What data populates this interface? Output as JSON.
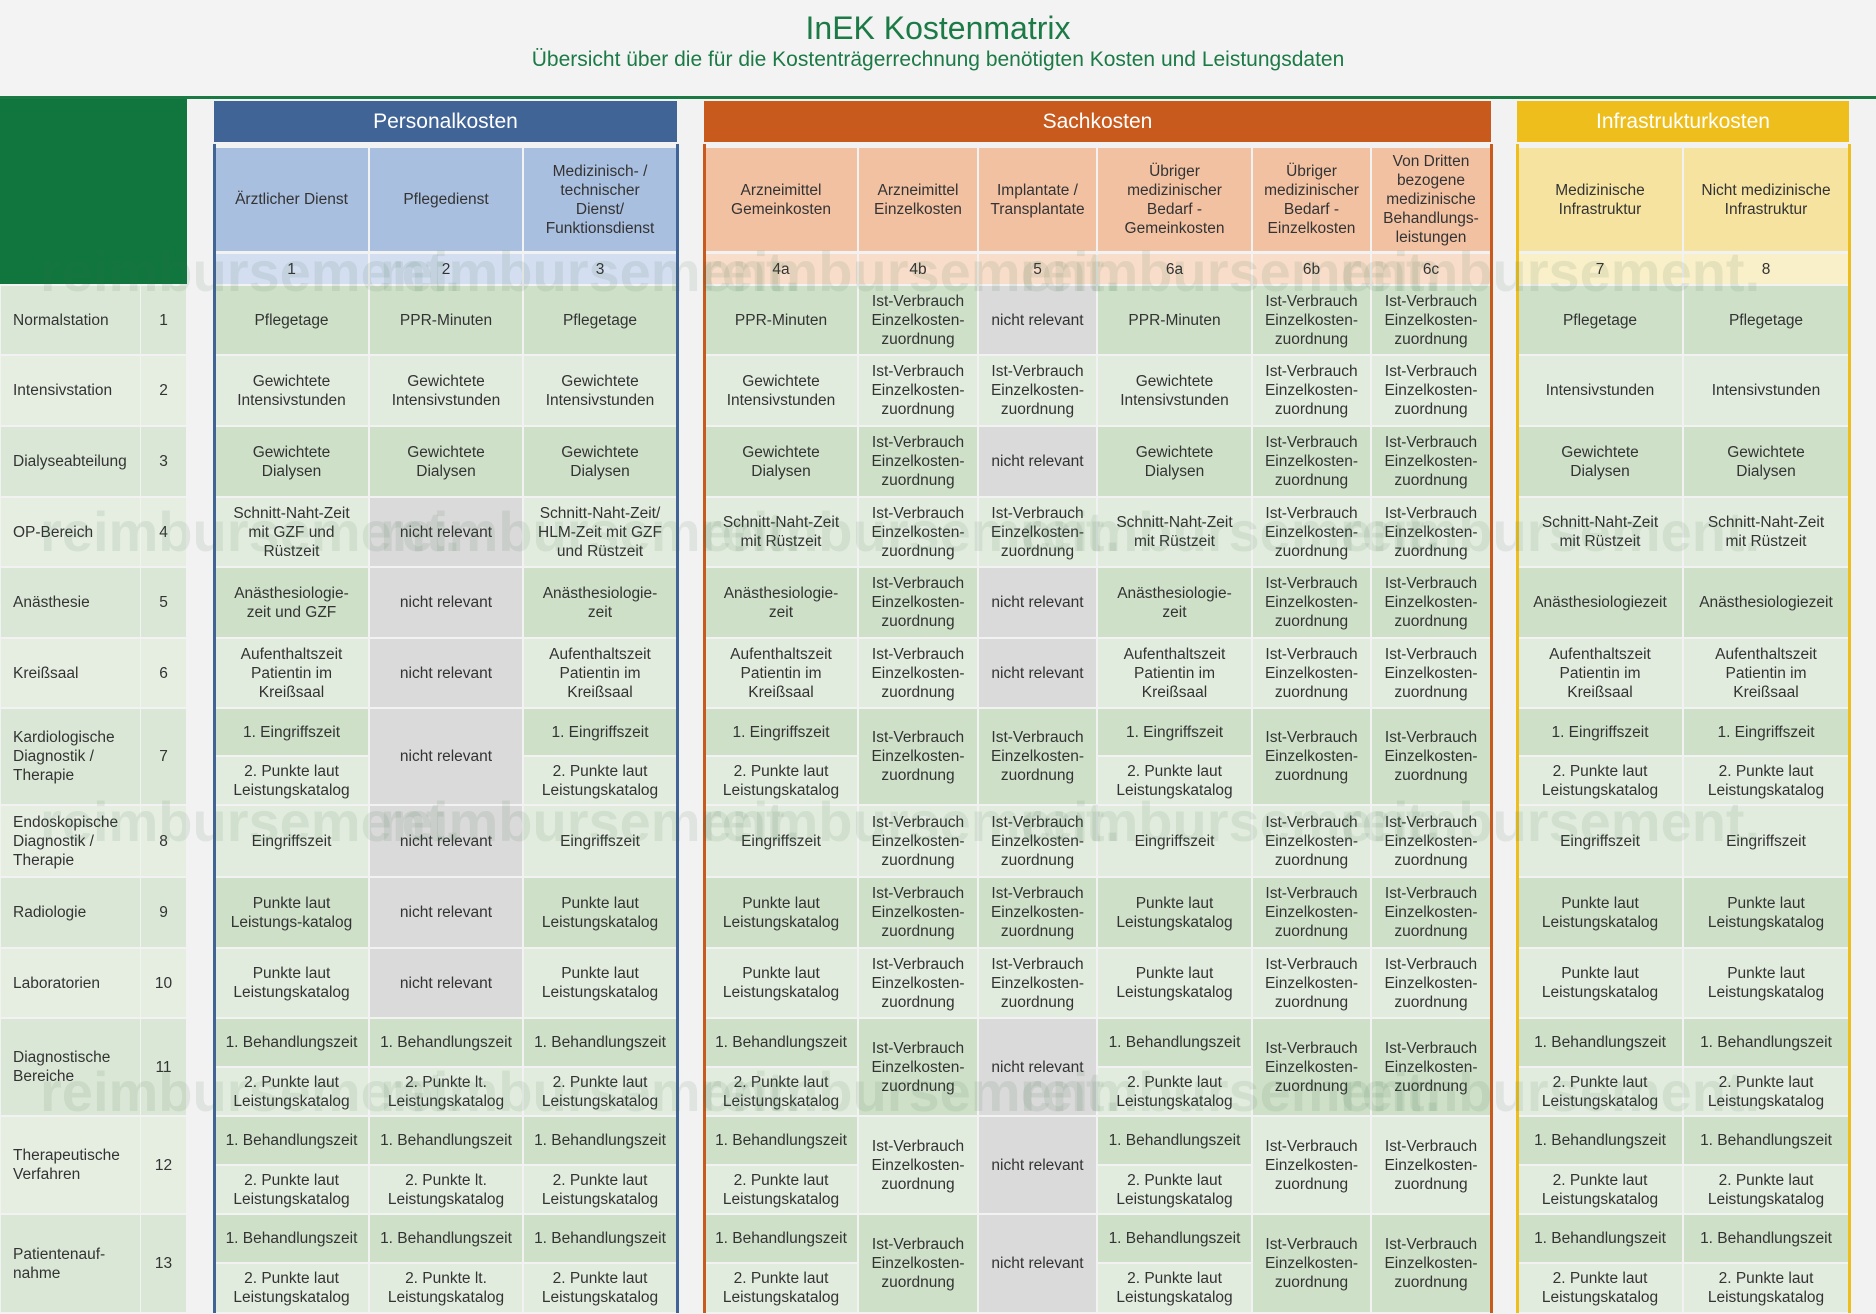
{
  "title": "InEK Kostenmatrix",
  "subtitle": "Übersicht über die für die Kostenträgerrechnung benötigten Kosten und Leistungsdaten",
  "watermark": "reimbursement.",
  "colors": {
    "personal": "#416496",
    "sach": "#c85a1e",
    "infra": "#eebe1c",
    "green": "#11763e"
  },
  "groups": [
    {
      "label": "Personalkosten",
      "key": "personal"
    },
    {
      "label": "Sachkosten",
      "key": "sach"
    },
    {
      "label": "Infrastrukturkosten",
      "key": "infra"
    }
  ],
  "columns": [
    {
      "label": "Ärztlicher Dienst",
      "num": "1",
      "group": "personal"
    },
    {
      "label": "Pflegedienst",
      "num": "2",
      "group": "personal"
    },
    {
      "label": "Medizinisch- /\ntechnischer\nDienst/\nFunktionsdienst",
      "num": "3",
      "group": "personal"
    },
    {
      "label": "Arzneimittel\nGemeinkosten",
      "num": "4a",
      "group": "sach"
    },
    {
      "label": "Arzneimittel\nEinzelkosten",
      "num": "4b",
      "group": "sach"
    },
    {
      "label": "Implantate /\nTransplantate",
      "num": "5",
      "group": "sach"
    },
    {
      "label": "Übriger\nmedizinischer\nBedarf -\nGemeinkosten",
      "num": "6a",
      "group": "sach"
    },
    {
      "label": "Übriger\nmedizinischer\nBedarf -\nEinzelkosten",
      "num": "6b",
      "group": "sach"
    },
    {
      "label": "Von Dritten\nbezogene\nmedizinische\nBehandlungs-\nleistungen",
      "num": "6c",
      "group": "sach"
    },
    {
      "label": "Medizinische\nInfrastruktur",
      "num": "7",
      "group": "infra"
    },
    {
      "label": "Nicht medizinische\nInfrastruktur",
      "num": "8",
      "group": "infra"
    }
  ],
  "rows": [
    {
      "label": "Normalstation",
      "num": "1",
      "cells": [
        "Pflegetage",
        "PPR-Minuten",
        "Pflegetage",
        "PPR-Minuten",
        "Ist-Verbrauch\nEinzelkosten-\nzuordnung",
        "nicht relevant",
        "PPR-Minuten",
        "Ist-Verbrauch\nEinzelkosten-\nzuordnung",
        "Ist-Verbrauch\nEinzelkosten-\nzuordnung",
        "Pflegetage",
        "Pflegetage"
      ]
    },
    {
      "label": "Intensivstation",
      "num": "2",
      "cells": [
        "Gewichtete\nIntensivstunden",
        "Gewichtete\nIntensivstunden",
        "Gewichtete\nIntensivstunden",
        "Gewichtete\nIntensivstunden",
        "Ist-Verbrauch\nEinzelkosten-\nzuordnung",
        "Ist-Verbrauch\nEinzelkosten-\nzuordnung",
        "Gewichtete\nIntensivstunden",
        "Ist-Verbrauch\nEinzelkosten-\nzuordnung",
        "Ist-Verbrauch\nEinzelkosten-\nzuordnung",
        "Intensivstunden",
        "Intensivstunden"
      ]
    },
    {
      "label": "Dialyseabteilung",
      "num": "3",
      "cells": [
        "Gewichtete\nDialysen",
        "Gewichtete\nDialysen",
        "Gewichtete\nDialysen",
        "Gewichtete\nDialysen",
        "Ist-Verbrauch\nEinzelkosten-\nzuordnung",
        "nicht relevant",
        "Gewichtete\nDialysen",
        "Ist-Verbrauch\nEinzelkosten-\nzuordnung",
        "Ist-Verbrauch\nEinzelkosten-\nzuordnung",
        "Gewichtete\nDialysen",
        "Gewichtete\nDialysen"
      ]
    },
    {
      "label": "OP-Bereich",
      "num": "4",
      "cells": [
        "Schnitt-Naht-Zeit\nmit GZF und\nRüstzeit",
        "nicht relevant",
        "Schnitt-Naht-Zeit/\nHLM-Zeit mit GZF\nund Rüstzeit",
        "Schnitt-Naht-Zeit\nmit Rüstzeit",
        "Ist-Verbrauch\nEinzelkosten-\nzuordnung",
        "Ist-Verbrauch\nEinzelkosten-\nzuordnung",
        "Schnitt-Naht-Zeit\nmit Rüstzeit",
        "Ist-Verbrauch\nEinzelkosten-\nzuordnung",
        "Ist-Verbrauch\nEinzelkosten-\nzuordnung",
        "Schnitt-Naht-Zeit\nmit Rüstzeit",
        "Schnitt-Naht-Zeit\nmit Rüstzeit"
      ]
    },
    {
      "label": "Anästhesie",
      "num": "5",
      "cells": [
        "Anästhesiologie-\nzeit und GZF",
        "nicht relevant",
        "Anästhesiologie-\nzeit",
        "Anästhesiologie-\nzeit",
        "Ist-Verbrauch\nEinzelkosten-\nzuordnung",
        "nicht relevant",
        "Anästhesiologie-\nzeit",
        "Ist-Verbrauch\nEinzelkosten-\nzuordnung",
        "Ist-Verbrauch\nEinzelkosten-\nzuordnung",
        "Anästhesiologiezeit",
        "Anästhesiologiezeit"
      ]
    },
    {
      "label": "Kreißsaal",
      "num": "6",
      "cells": [
        "Aufenthaltszeit\nPatientin im\nKreißsaal",
        "nicht relevant",
        "Aufenthaltszeit\nPatientin im\nKreißsaal",
        "Aufenthaltszeit\nPatientin im\nKreißsaal",
        "Ist-Verbrauch\nEinzelkosten-\nzuordnung",
        "nicht relevant",
        "Aufenthaltszeit\nPatientin im\nKreißsaal",
        "Ist-Verbrauch\nEinzelkosten-\nzuordnung",
        "Ist-Verbrauch\nEinzelkosten-\nzuordnung",
        "Aufenthaltszeit\nPatientin im\nKreißsaal",
        "Aufenthaltszeit\nPatientin im\nKreißsaal"
      ]
    },
    {
      "label": "Kardiologische\nDiagnostik /\nTherapie",
      "num": "7",
      "cells": [
        [
          "1. Eingriffszeit",
          "2. Punkte laut\nLeistungskatalog"
        ],
        "nicht relevant",
        [
          "1. Eingriffszeit",
          "2. Punkte laut\nLeistungskatalog"
        ],
        [
          "1. Eingriffszeit",
          "2. Punkte laut\nLeistungskatalog"
        ],
        "Ist-Verbrauch\nEinzelkosten-\nzuordnung",
        "Ist-Verbrauch\nEinzelkosten-\nzuordnung",
        [
          "1. Eingriffszeit",
          "2. Punkte laut\nLeistungskatalog"
        ],
        "Ist-Verbrauch\nEinzelkosten-\nzuordnung",
        "Ist-Verbrauch\nEinzelkosten-\nzuordnung",
        [
          "1. Eingriffszeit",
          "2. Punkte laut\nLeistungskatalog"
        ],
        [
          "1. Eingriffszeit",
          "2. Punkte laut\nLeistungskatalog"
        ]
      ]
    },
    {
      "label": "Endoskopische\nDiagnostik /\nTherapie",
      "num": "8",
      "cells": [
        "Eingriffszeit",
        "nicht relevant",
        "Eingriffszeit",
        "Eingriffszeit",
        "Ist-Verbrauch\nEinzelkosten-\nzuordnung",
        "Ist-Verbrauch\nEinzelkosten-\nzuordnung",
        "Eingriffszeit",
        "Ist-Verbrauch\nEinzelkosten-\nzuordnung",
        "Ist-Verbrauch\nEinzelkosten-\nzuordnung",
        "Eingriffszeit",
        "Eingriffszeit"
      ]
    },
    {
      "label": "Radiologie",
      "num": "9",
      "cells": [
        "Punkte laut\nLeistungs-katalog",
        "nicht relevant",
        "Punkte laut\nLeistungskatalog",
        "Punkte laut\nLeistungskatalog",
        "Ist-Verbrauch\nEinzelkosten-\nzuordnung",
        "Ist-Verbrauch\nEinzelkosten-\nzuordnung",
        "Punkte laut\nLeistungskatalog",
        "Ist-Verbrauch\nEinzelkosten-\nzuordnung",
        "Ist-Verbrauch\nEinzelkosten-\nzuordnung",
        "Punkte laut\nLeistungskatalog",
        "Punkte laut\nLeistungskatalog"
      ]
    },
    {
      "label": "Laboratorien",
      "num": "10",
      "cells": [
        "Punkte laut\nLeistungskatalog",
        "nicht relevant",
        "Punkte laut\nLeistungskatalog",
        "Punkte laut\nLeistungskatalog",
        "Ist-Verbrauch\nEinzelkosten-\nzuordnung",
        "Ist-Verbrauch\nEinzelkosten-\nzuordnung",
        "Punkte laut\nLeistungskatalog",
        "Ist-Verbrauch\nEinzelkosten-\nzuordnung",
        "Ist-Verbrauch\nEinzelkosten-\nzuordnung",
        "Punkte laut\nLeistungskatalog",
        "Punkte laut\nLeistungskatalog"
      ]
    },
    {
      "label": "Diagnostische\nBereiche",
      "num": "11",
      "cells": [
        [
          "1. Behandlungszeit",
          "2. Punkte laut\nLeistungskatalog"
        ],
        [
          "1. Behandlungszeit",
          "2. Punkte lt.\nLeistungskatalog"
        ],
        [
          "1. Behandlungszeit",
          "2. Punkte laut\nLeistungskatalog"
        ],
        [
          "1. Behandlungszeit",
          "2. Punkte laut\nLeistungskatalog"
        ],
        "Ist-Verbrauch\nEinzelkosten-\nzuordnung",
        "nicht relevant",
        [
          "1. Behandlungszeit",
          "2. Punkte laut\nLeistungskatalog"
        ],
        "Ist-Verbrauch\nEinzelkosten-\nzuordnung",
        "Ist-Verbrauch\nEinzelkosten-\nzuordnung",
        [
          "1. Behandlungszeit",
          "2. Punkte laut\nLeistungskatalog"
        ],
        [
          "1. Behandlungszeit",
          "2. Punkte laut\nLeistungskatalog"
        ]
      ]
    },
    {
      "label": "Therapeutische\nVerfahren",
      "num": "12",
      "cells": [
        [
          "1. Behandlungszeit",
          "2. Punkte laut\nLeistungskatalog"
        ],
        [
          "1. Behandlungszeit",
          "2. Punkte lt.\nLeistungskatalog"
        ],
        [
          "1. Behandlungszeit",
          "2. Punkte laut\nLeistungskatalog"
        ],
        [
          "1. Behandlungszeit",
          "2. Punkte laut\nLeistungskatalog"
        ],
        "Ist-Verbrauch\nEinzelkosten-\nzuordnung",
        "nicht relevant",
        [
          "1. Behandlungszeit",
          "2. Punkte laut\nLeistungskatalog"
        ],
        "Ist-Verbrauch\nEinzelkosten-\nzuordnung",
        "Ist-Verbrauch\nEinzelkosten-\nzuordnung",
        [
          "1. Behandlungszeit",
          "2. Punkte laut\nLeistungskatalog"
        ],
        [
          "1. Behandlungszeit",
          "2. Punkte laut\nLeistungskatalog"
        ]
      ]
    },
    {
      "label": "Patientenauf-\nnahme",
      "num": "13",
      "cells": [
        [
          "1. Behandlungszeit",
          "2. Punkte laut\nLeistungskatalog"
        ],
        [
          "1. Behandlungszeit",
          "2. Punkte lt.\nLeistungskatalog"
        ],
        [
          "1. Behandlungszeit",
          "2. Punkte laut\nLeistungskatalog"
        ],
        [
          "1. Behandlungszeit",
          "2. Punkte laut\nLeistungskatalog"
        ],
        "Ist-Verbrauch\nEinzelkosten-\nzuordnung",
        "nicht relevant",
        [
          "1. Behandlungszeit",
          "2. Punkte laut\nLeistungskatalog"
        ],
        "Ist-Verbrauch\nEinzelkosten-\nzuordnung",
        "Ist-Verbrauch\nEinzelkosten-\nzuordnung",
        [
          "1. Behandlungszeit",
          "2. Punkte laut\nLeistungskatalog"
        ],
        [
          "1. Behandlungszeit",
          "2. Punkte laut\nLeistungskatalog"
        ]
      ]
    }
  ]
}
